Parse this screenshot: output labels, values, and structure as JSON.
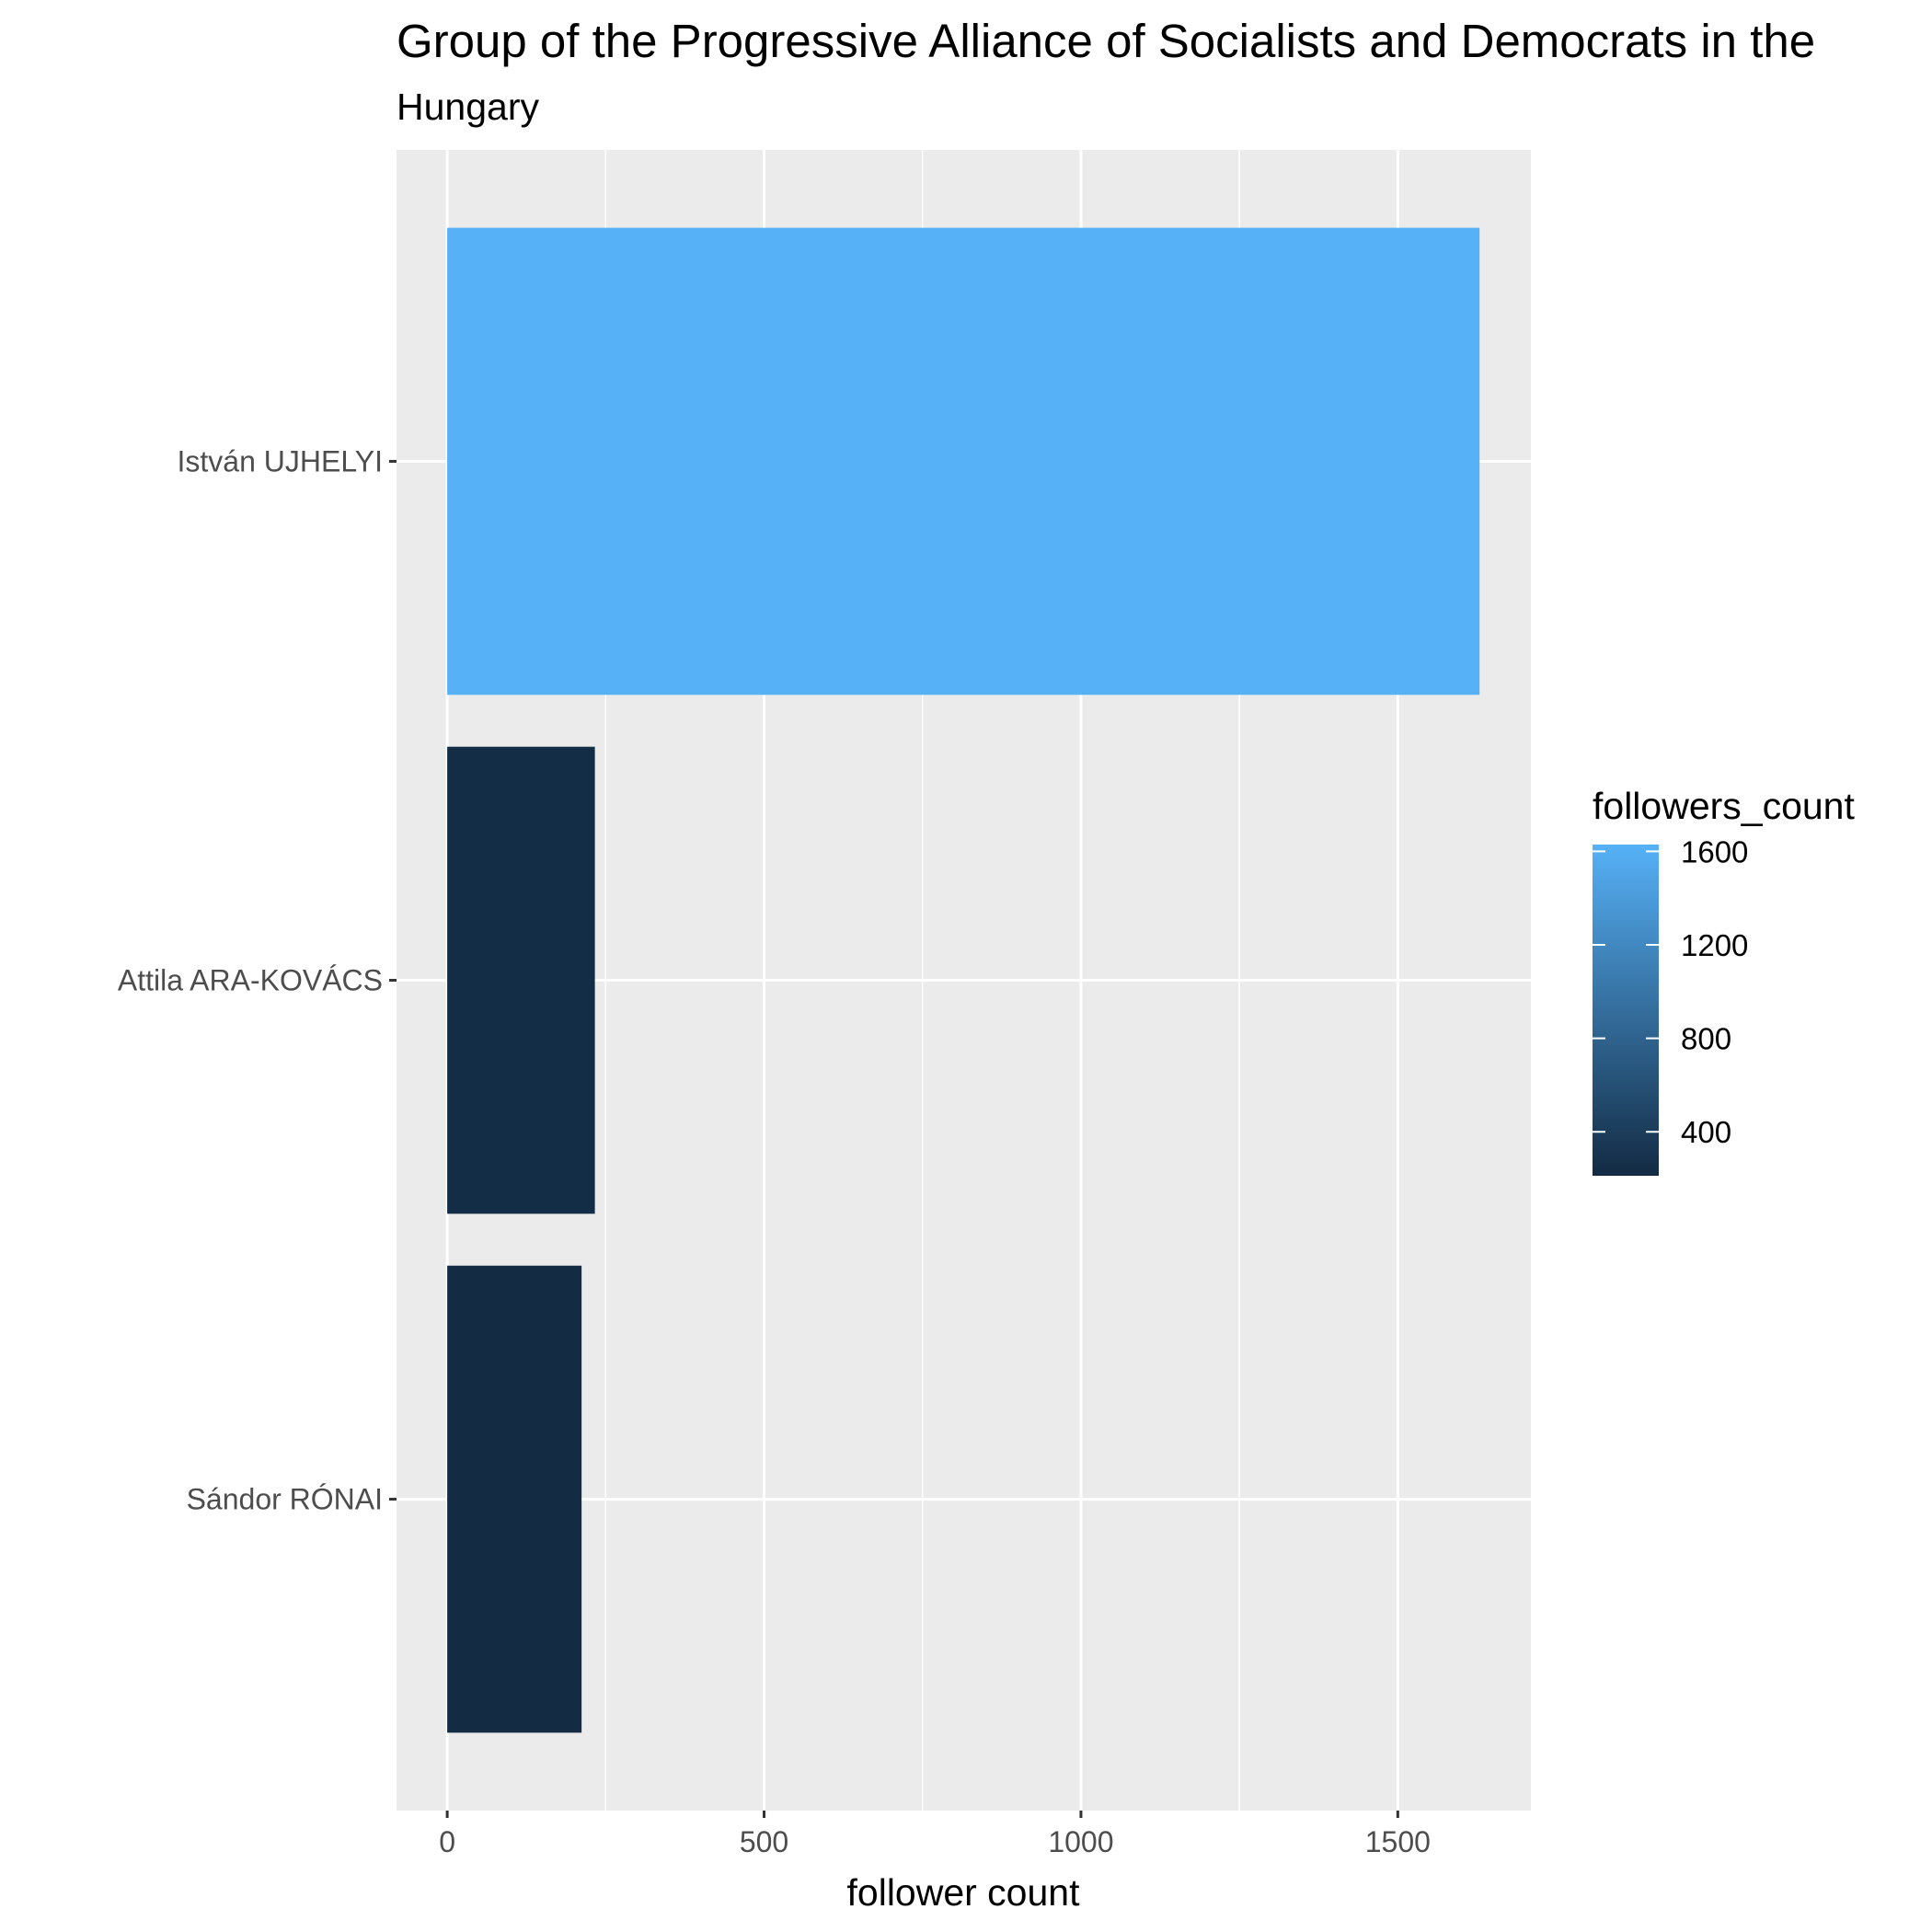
{
  "chart_data": {
    "type": "bar",
    "orientation": "horizontal",
    "title": "Group of the Progressive Alliance of Socialists and Democrats in the",
    "subtitle": "Hungary",
    "xlabel": "follower count",
    "ylabel": "",
    "categories": [
      "István UJHELYI",
      "Attila ARA-KOVÁCS",
      "Sándor RÓNAI"
    ],
    "values": [
      1629,
      233,
      212
    ],
    "xlim": [
      -80,
      1710
    ],
    "x_ticks": [
      0,
      500,
      1000,
      1500
    ],
    "x_tick_labels": [
      "0",
      "500",
      "1000",
      "1500"
    ],
    "grid": true,
    "legend": {
      "title": "followers_count",
      "position": "right",
      "type": "colorbar",
      "range": [
        212,
        1629
      ],
      "ticks": [
        400,
        800,
        1200,
        1600
      ],
      "tick_labels": [
        "400",
        "800",
        "1200",
        "1600"
      ],
      "low_color": "#132B43",
      "high_color": "#56B1F7"
    },
    "panel_background": "#EBEBEB",
    "gridline_color": "#FFFFFF"
  }
}
